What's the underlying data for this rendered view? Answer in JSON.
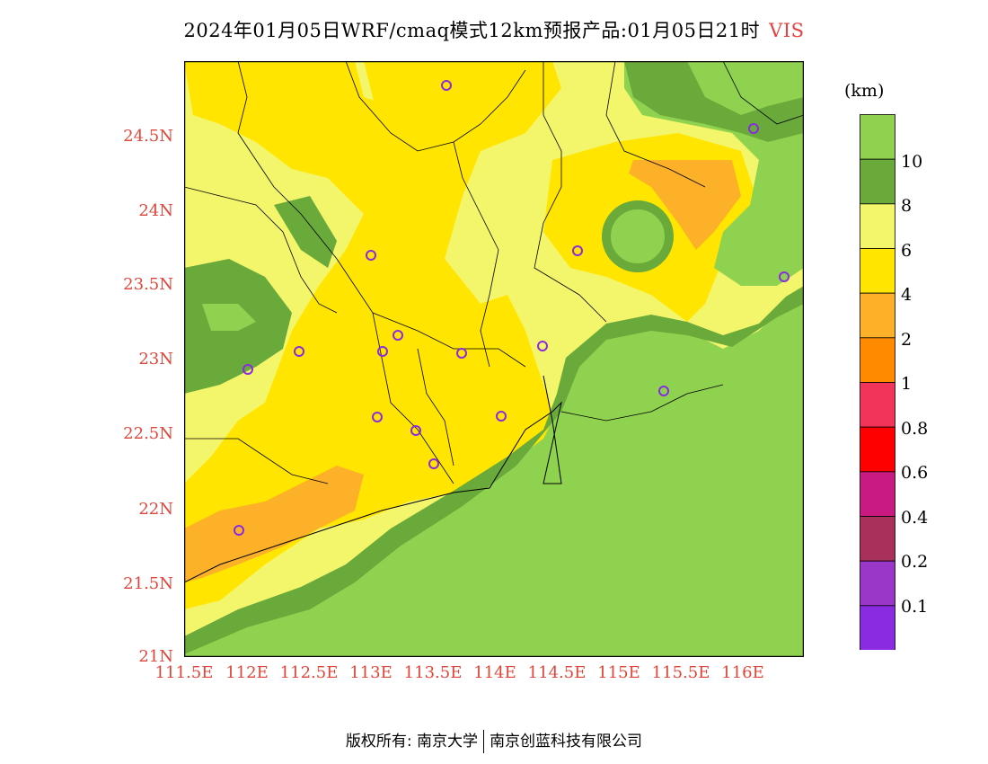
{
  "title": {
    "main": "2024年01月05日WRF/cmaq模式12km预报产品:01月05日21时",
    "variable": "VIS"
  },
  "colors": {
    "axis_label": "#e0453a",
    "title_var": "#e8403f",
    "station_marker": "#8a2be2"
  },
  "map": {
    "lat_ticks": [
      "21N",
      "21.5N",
      "22N",
      "22.5N",
      "23N",
      "23.5N",
      "24N",
      "24.5N"
    ],
    "lon_ticks": [
      "111.5E",
      "112E",
      "112.5E",
      "113E",
      "113.5E",
      "114E",
      "114.5E",
      "115E",
      "115.5E",
      "116E"
    ]
  },
  "colorbar": {
    "unit": "(km)",
    "levels": [
      "10",
      "8",
      "6",
      "4",
      "2",
      "1",
      "0.8",
      "0.6",
      "0.4",
      "0.2",
      "0.1"
    ],
    "colors": [
      "#8fd24f",
      "#6aaa3a",
      "#f3f56b",
      "#ffe500",
      "#fcb128",
      "#ff8a00",
      "#f2335a",
      "#ff0000",
      "#c81a80",
      "#a8305a",
      "#9a36c8",
      "#8a2be2"
    ]
  },
  "footer": {
    "left": "版权所有: 南京大学",
    "right": "南京创蓝科技有限公司"
  }
}
